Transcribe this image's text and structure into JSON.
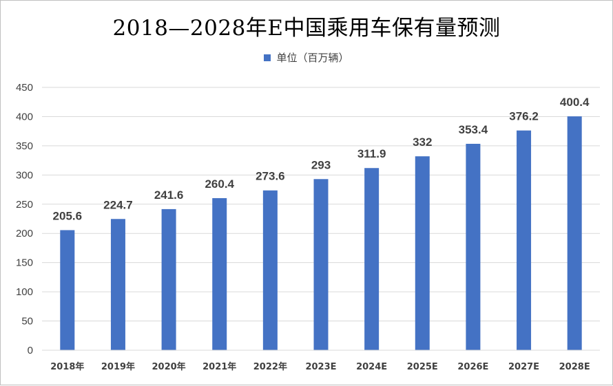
{
  "chart_data": {
    "type": "bar",
    "title": "2018—2028年E中国乘用车保有量预测",
    "legend_position": "top",
    "grid": true,
    "series": [
      {
        "name": "单位（百万辆）",
        "color": "#4472C4",
        "values": [
          205.6,
          224.7,
          241.6,
          260.4,
          273.6,
          293,
          311.9,
          332,
          353.4,
          376.2,
          400.4
        ],
        "labels": [
          "205.6",
          "224.7",
          "241.6",
          "260.4",
          "273.6",
          "293",
          "311.9",
          "332",
          "353.4",
          "376.2",
          "400.4"
        ]
      }
    ],
    "categories": [
      "2018年",
      "2019年",
      "2020年",
      "2021年",
      "2022年",
      "2023E",
      "2024E",
      "2025E",
      "2026E",
      "2027E",
      "2028E"
    ],
    "ylim": [
      0,
      450
    ],
    "yticks": [
      0,
      50,
      100,
      150,
      200,
      250,
      300,
      350,
      400,
      450
    ],
    "xlabel": "",
    "ylabel": ""
  }
}
